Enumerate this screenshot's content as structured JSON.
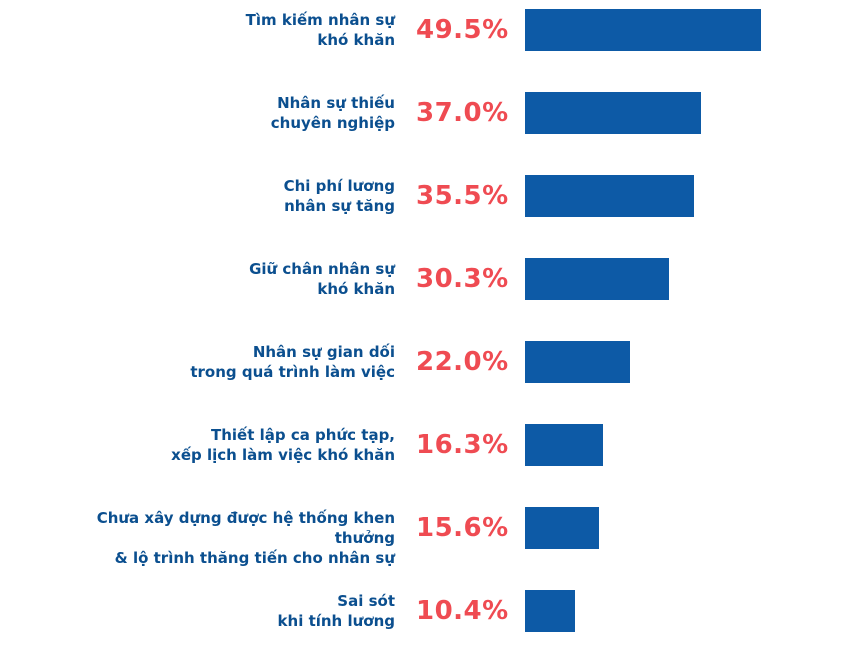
{
  "chart_data": {
    "type": "bar",
    "orientation": "horizontal",
    "categories": [
      "Tìm kiếm nhân sự\nkhó khăn",
      "Nhân sự thiếu\nchuyên nghiệp",
      "Chi phí lương\nnhân sự tăng",
      "Giữ chân nhân sự\nkhó khăn",
      "Nhân sự gian dối\ntrong quá trình làm việc",
      "Thiết lập ca phức tạp,\nxếp lịch làm việc khó khăn",
      "Chưa xây dựng được hệ thống khen thưởng\n& lộ trình thăng tiến cho nhân sự",
      "Sai sót\nkhi tính lương"
    ],
    "values": [
      49.5,
      37.0,
      35.5,
      30.3,
      22.0,
      16.3,
      15.6,
      10.4
    ],
    "value_labels": [
      "49.5%",
      "37.0%",
      "35.5%",
      "30.3%",
      "22.0%",
      "16.3%",
      "15.6%",
      "10.4%"
    ],
    "xlim": [
      0,
      49.5
    ],
    "grid": false,
    "legend": "none",
    "colors": {
      "bar": "#0d5aa6",
      "value_label": "#ef4b52",
      "category_label": "#0b4f8f"
    }
  }
}
